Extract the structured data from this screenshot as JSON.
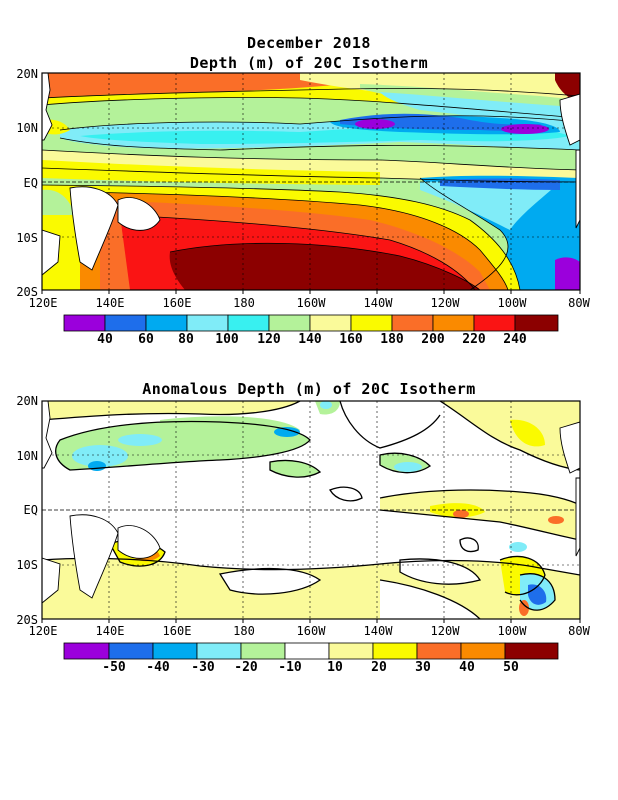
{
  "panel_top": {
    "title_line1": "December 2018",
    "title_line2": "Depth (m) of 20C Isotherm",
    "lat_labels": [
      "20N",
      "10N",
      "EQ",
      "10S",
      "20S"
    ],
    "lon_labels": [
      "120E",
      "140E",
      "160E",
      "180",
      "160W",
      "140W",
      "120W",
      "100W",
      "80W"
    ],
    "colorbar_labels": [
      "40",
      "60",
      "80",
      "100",
      "120",
      "140",
      "160",
      "180",
      "200",
      "220",
      "240"
    ],
    "colorbar_colors": [
      "#9b00dc",
      "#1e6eeb",
      "#00aaf0",
      "#80ecf8",
      "#38f0f0",
      "#b4f29a",
      "#fafa9a",
      "#fafa00",
      "#fa6e28",
      "#fa8a00",
      "#fa1414",
      "#8c0000"
    ]
  },
  "panel_bottom": {
    "title": "Anomalous Depth (m) of 20C Isotherm",
    "lat_labels": [
      "20N",
      "10N",
      "EQ",
      "10S",
      "20S"
    ],
    "lon_labels": [
      "120E",
      "140E",
      "160E",
      "180",
      "160W",
      "140W",
      "120W",
      "100W",
      "80W"
    ],
    "colorbar_labels": [
      "-50",
      "-40",
      "-30",
      "-20",
      "-10",
      "10",
      "20",
      "30",
      "40",
      "50"
    ],
    "colorbar_colors": [
      "#9b00dc",
      "#1e6eeb",
      "#00aaf0",
      "#80ecf8",
      "#b4f29a",
      "#ffffff",
      "#fafa9a",
      "#fafa00",
      "#fa6e28",
      "#fa8a00",
      "#8c0000"
    ]
  }
}
